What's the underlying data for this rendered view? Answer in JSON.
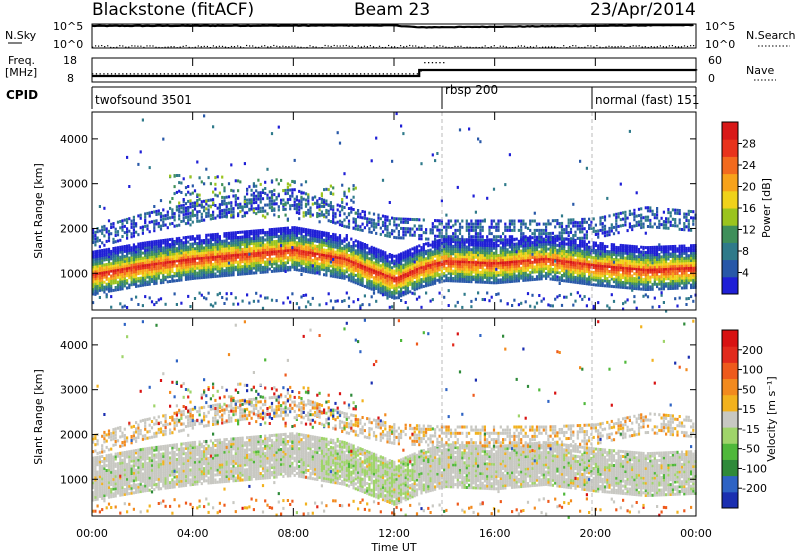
{
  "header": {
    "radar": "Blackstone (fitACF)",
    "beam": "Beam 23",
    "date": "23/Apr/2014"
  },
  "strip_nsky": {
    "left_label": "N.Sky",
    "left_ticks": [
      "10^5",
      "10^0"
    ],
    "right_label": "N.Search",
    "right_ticks": [
      "10^5",
      "10^0"
    ]
  },
  "strip_freq": {
    "left_label_line1": "Freq.",
    "left_label_line2": "[MHz]",
    "left_ticks": [
      "18",
      "8"
    ],
    "right_label": "Nave",
    "right_ticks": [
      "60",
      "0"
    ]
  },
  "cpid": {
    "label": "CPID",
    "segments": [
      {
        "name": "twofsound 3501",
        "start_hour": 0
      },
      {
        "name": "rbsp 200",
        "start_hour": 14
      },
      {
        "name": "normal (fast) 151",
        "start_hour": 20
      }
    ]
  },
  "x_axis": {
    "title": "Time UT",
    "ticks": [
      "00:00",
      "04:00",
      "08:00",
      "12:00",
      "16:00",
      "20:00",
      "00:00"
    ]
  },
  "panels": {
    "power": {
      "ylabel": "Slant Range [km]",
      "y_ticks": [
        "1000",
        "2000",
        "3000",
        "4000"
      ]
    },
    "velocity": {
      "ylabel": "Slant Range [km]",
      "y_ticks": [
        "1000",
        "2000",
        "3000",
        "4000"
      ]
    }
  },
  "colorbar_power": {
    "label": "Power [dB]",
    "ticks": [
      "4",
      "8",
      "12",
      "16",
      "20",
      "24",
      "28"
    ],
    "colors": [
      "#1f1fd6",
      "#2858a8",
      "#2f7a8a",
      "#3f8f5a",
      "#9bc41e",
      "#f0d21a",
      "#f7a21a",
      "#f26a1e",
      "#e8331c",
      "#d81818"
    ]
  },
  "colorbar_velocity": {
    "label": "Velocity [m s⁻¹]",
    "ticks": [
      "200",
      "100",
      "50",
      "15",
      "-15",
      "-50",
      "-100",
      "-200"
    ],
    "colors": [
      "#1b2fb0",
      "#2e63c4",
      "#2f8a3a",
      "#4fb83a",
      "#9fd46a",
      "#c8c8c2",
      "#f2b21e",
      "#f28a1e",
      "#ee5a1c",
      "#e22a1c",
      "#d81212"
    ]
  },
  "chart_data": {
    "type": "heatmap",
    "title": "Blackstone (fitACF)   Beam 23   23/Apr/2014",
    "xlabel": "Time UT",
    "ylabel": "Slant Range [km]",
    "x_range_hours": [
      0,
      24
    ],
    "y_range_km": [
      180,
      4600
    ],
    "grid": false,
    "series": [
      {
        "name": "Power [dB]",
        "main_echo_band_km": {
          "hours": [
            0,
            2,
            4,
            6,
            8,
            10,
            12,
            13,
            14,
            16,
            18,
            20,
            22,
            24
          ],
          "center": [
            1050,
            1250,
            1400,
            1500,
            1600,
            1400,
            950,
            1200,
            1350,
            1300,
            1400,
            1250,
            1150,
            1200
          ],
          "peak_power_db": [
            26,
            28,
            28,
            28,
            26,
            26,
            24,
            26,
            24,
            24,
            26,
            26,
            22,
            22
          ]
        },
        "upper_echo_band_km": {
          "hours": [
            0,
            2,
            4,
            6,
            8,
            10,
            12,
            14,
            16,
            18,
            20,
            22,
            24
          ],
          "center": [
            1800,
            2150,
            2400,
            2600,
            2700,
            2300,
            2050,
            2000,
            2000,
            2000,
            2050,
            2300,
            2200
          ]
        },
        "high_scatter_km": {
          "hours": [
            3,
            10.5
          ],
          "center": 2800
        }
      },
      {
        "name": "Velocity [m s-1]",
        "dominant_value_range": [
          -15,
          15
        ],
        "high_scatter_velocity_mix": [
          -200,
          200
        ]
      }
    ],
    "strips": {
      "nsky_log10": {
        "hours": [
          0,
          12,
          13,
          24
        ],
        "values": [
          4.6,
          4.7,
          4.3,
          4.8
        ]
      },
      "nsearch_log10": {
        "hours": [
          0,
          24
        ],
        "values": [
          0.4,
          0.4
        ]
      },
      "freq_mhz": {
        "hours": [
          0,
          13,
          13,
          24
        ],
        "values": [
          10.5,
          10.5,
          13.0,
          13.0
        ]
      },
      "nave": {
        "hours": [
          0,
          13,
          13.2,
          14,
          14,
          24
        ],
        "values": [
          22,
          22,
          50,
          50,
          32,
          32
        ]
      }
    }
  }
}
